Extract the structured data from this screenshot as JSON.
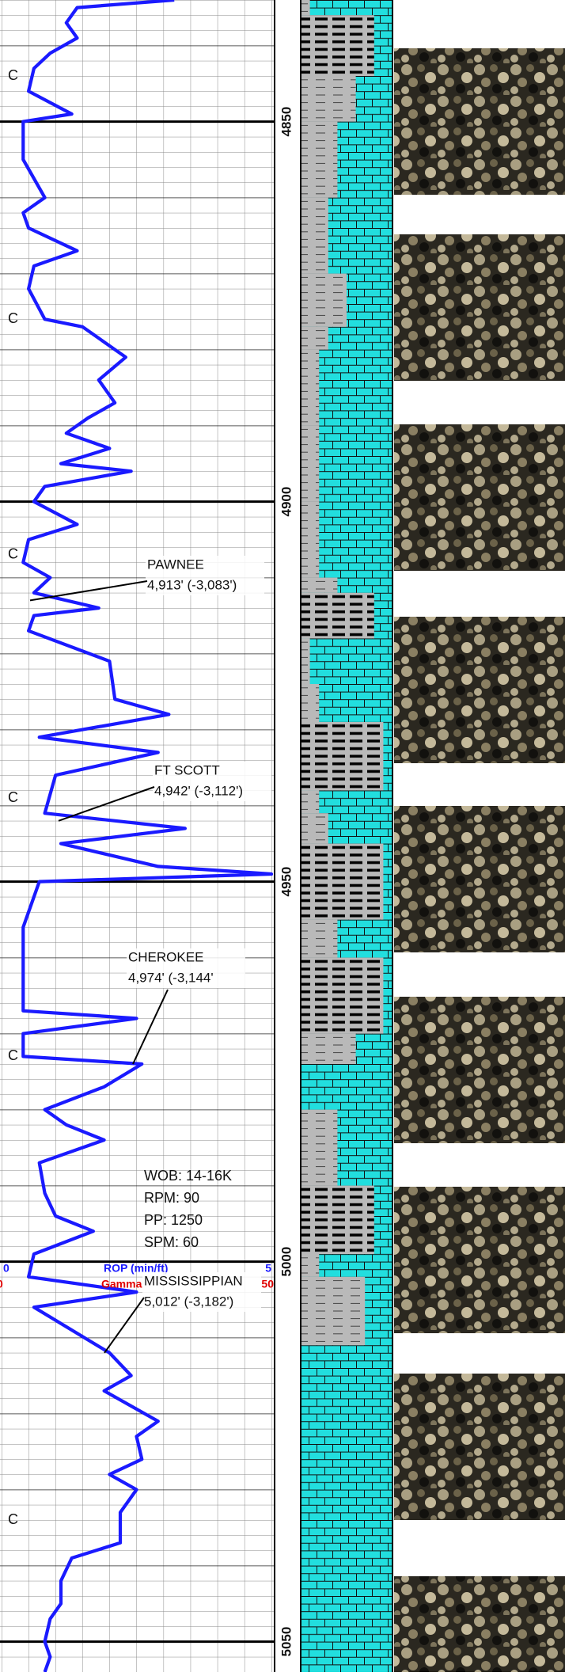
{
  "chart_data": {
    "type": "line",
    "x": [
      4834,
      4835,
      4837,
      4839,
      4841,
      4843,
      4846,
      4849,
      4850,
      4855,
      4860,
      4862,
      4864,
      4867,
      4869,
      4872,
      4876,
      4877,
      4881,
      4884,
      4887,
      4889,
      4891,
      4893,
      4895,
      4896,
      4898,
      4900,
      4903,
      4905,
      4908,
      4910,
      4912,
      4914,
      4915,
      4917,
      4921,
      4926,
      4928,
      4931,
      4933,
      4936,
      4941,
      4943,
      4945,
      4948,
      4949,
      4950,
      4956,
      4967,
      4968,
      4970,
      4973,
      4974,
      4977,
      4980,
      4982,
      4984,
      4987,
      4991,
      4994,
      4996,
      4999,
      5002,
      5004,
      5006,
      5012,
      5015,
      5017,
      5021,
      5023,
      5026,
      5028,
      5030,
      5033,
      5037,
      5039,
      5042,
      5045,
      5047,
      5050,
      5052,
      5054
    ],
    "series": [
      {
        "name": "ROP (min/ft)",
        "color": "#1a1aff",
        "values": [
          3.2,
          1.4,
          1.2,
          1.4,
          0.9,
          0.6,
          0.5,
          1.3,
          0.4,
          0.4,
          0.8,
          0.4,
          0.5,
          1.4,
          0.6,
          0.5,
          0.8,
          1.5,
          2.3,
          1.8,
          2.1,
          1.6,
          1.2,
          2.0,
          1.1,
          2.4,
          0.8,
          0.6,
          1.4,
          0.5,
          0.4,
          0.9,
          0.6,
          1.8,
          0.6,
          0.5,
          2.0,
          2.1,
          3.1,
          0.7,
          2.9,
          1.0,
          0.8,
          3.4,
          1.1,
          2.9,
          5.0,
          0.7,
          0.4,
          0.4,
          2.5,
          0.4,
          0.4,
          2.6,
          1.9,
          0.8,
          1.2,
          1.9,
          0.7,
          0.8,
          1.0,
          1.7,
          0.6,
          0.5,
          2.5,
          0.6,
          2.0,
          2.4,
          1.9,
          2.9,
          2.5,
          2.6,
          2.0,
          2.5,
          2.2,
          2.2,
          1.3,
          1.1,
          1.1,
          0.9,
          0.8,
          0.9,
          0.8
        ]
      }
    ],
    "xlim": [
      0,
      5
    ],
    "xticks": [
      0,
      5
    ],
    "gamma": {
      "name": "Gamma",
      "color": "#e00000",
      "lim": [
        0,
        50
      ],
      "ticks": [
        0,
        50
      ]
    },
    "ylim": [
      4834,
      5054
    ],
    "yticks": [
      4850,
      4900,
      4950,
      5000,
      5050
    ],
    "formation_tops": [
      {
        "name": "PAWNEE",
        "label": "4,913' (-3,083')",
        "depth": 4913
      },
      {
        "name": "FT SCOTT",
        "label": "4,942' (-3,112')",
        "depth": 4942
      },
      {
        "name": "CHEROKEE",
        "label": "4,974' (-3,144'",
        "depth": 4974
      },
      {
        "name": "MISSISSIPPIAN",
        "label": "5,012' (-3,182')",
        "depth": 5012
      }
    ],
    "markers": [
      {
        "label": "C",
        "depth": 4844
      },
      {
        "label": "C",
        "depth": 4876
      },
      {
        "label": "C",
        "depth": 4907
      },
      {
        "label": "C",
        "depth": 4939
      },
      {
        "label": "C",
        "depth": 4973
      },
      {
        "label": "C",
        "depth": 5034
      }
    ],
    "drilling_notes": [
      "WOB: 14-16K",
      "RPM: 90",
      "PP: 1250",
      "SPM: 60"
    ],
    "lithology": {
      "depths": [
        4834,
        4836,
        4844,
        4850,
        4860,
        4870,
        4877,
        4880,
        4890,
        4900,
        4910,
        4912,
        4918,
        4924,
        4929,
        4938,
        4941,
        4945,
        4955,
        4960,
        4970,
        4974,
        4980,
        4990,
        4999,
        5002,
        5011,
        5054
      ],
      "shale_pct": [
        10,
        80,
        60,
        40,
        30,
        50,
        30,
        20,
        20,
        20,
        40,
        80,
        10,
        20,
        90,
        20,
        30,
        90,
        40,
        90,
        60,
        0,
        40,
        80,
        20,
        70,
        0
      ]
    }
  }
}
